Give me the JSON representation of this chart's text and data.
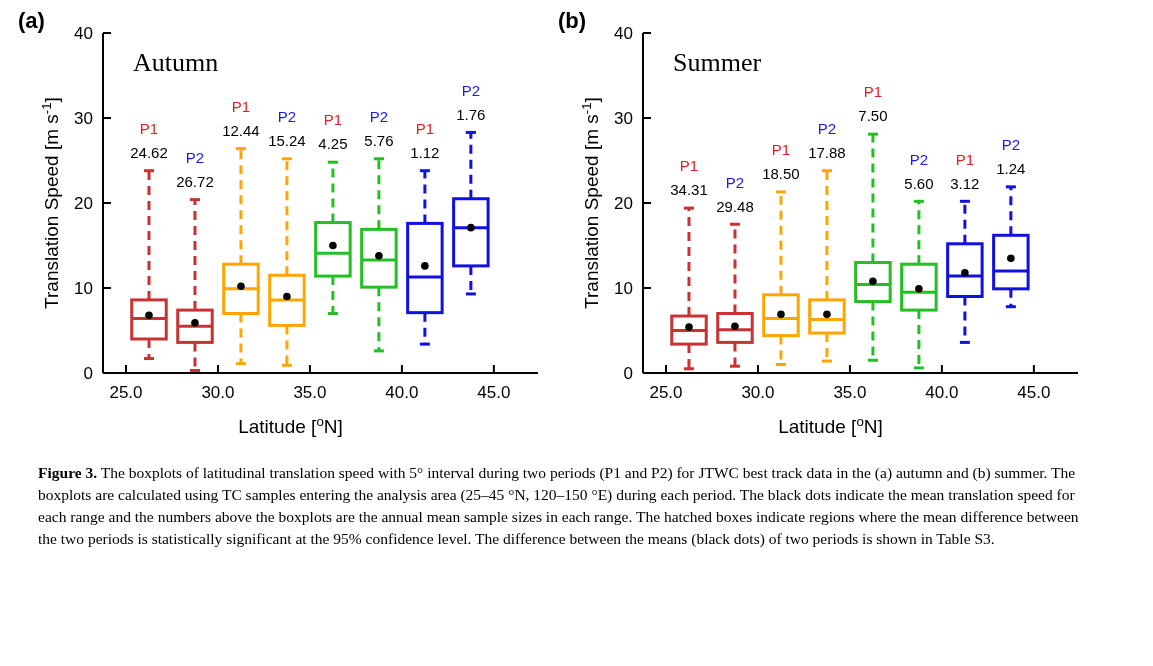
{
  "chart_data": [
    {
      "type": "box",
      "title": "(a)",
      "subtitle": "Autumn",
      "xlabel": "Latitude [$^{o}$N]",
      "ylabel": "Translation Speed [m s$^{-1}$]",
      "x": [
        26.25,
        28.75,
        31.25,
        33.75,
        36.25,
        38.75,
        41.25,
        43.75
      ],
      "colors": [
        "#c83232",
        "#c83232",
        "#ffa500",
        "#ffa500",
        "#22c022",
        "#22c022",
        "#1010e0",
        "#1010e0"
      ],
      "boxes": [
        {
          "low": 1.7,
          "q1": 4.0,
          "median": 6.4,
          "q3": 8.6,
          "high": 23.8,
          "mean": 6.8
        },
        {
          "low": 0.3,
          "q1": 3.6,
          "median": 5.5,
          "q3": 7.4,
          "high": 20.4,
          "mean": 5.9
        },
        {
          "low": 1.1,
          "q1": 7.0,
          "median": 9.9,
          "q3": 12.8,
          "high": 26.4,
          "mean": 10.2
        },
        {
          "low": 0.9,
          "q1": 5.6,
          "median": 8.6,
          "q3": 11.5,
          "high": 25.2,
          "mean": 9.0
        },
        {
          "low": 7.0,
          "q1": 11.4,
          "median": 14.1,
          "q3": 17.7,
          "high": 24.8,
          "mean": 15.0
        },
        {
          "low": 2.6,
          "q1": 10.1,
          "median": 13.3,
          "q3": 16.9,
          "high": 25.2,
          "mean": 13.8
        },
        {
          "low": 3.4,
          "q1": 7.1,
          "median": 11.3,
          "q3": 17.6,
          "high": 23.8,
          "mean": 12.6
        },
        {
          "low": 9.3,
          "q1": 12.6,
          "median": 17.1,
          "q3": 20.5,
          "high": 28.3,
          "mean": 17.1
        }
      ],
      "xlim": [
        23.75,
        47.4
      ],
      "xticks": [
        {
          "value": 25,
          "label": "25.0"
        },
        {
          "value": 30,
          "label": "30.0"
        },
        {
          "value": 35,
          "label": "35.0"
        },
        {
          "value": 40,
          "label": "40.0"
        },
        {
          "value": 45,
          "label": "45.0"
        }
      ],
      "ylim": [
        0,
        40
      ],
      "yticks": [
        0,
        10,
        20,
        30,
        40
      ],
      "grid": false,
      "marker": "circle",
      "line_style": "dashed",
      "annotations": [
        "P1",
        "24.62",
        "P2",
        "26.72",
        "P1",
        "12.44",
        "P2",
        "15.24",
        "P1",
        "4.25",
        "P2",
        "5.76",
        "P1",
        "1.12",
        "P2",
        "1.76",
        "Figure 3. The boxplots of latitudinal translation speed with 5° interval during two periods (P1 and P2) for JTWC best track data in the (a) autumn and (b) summer. The boxplots are calculated using TC samples entering the analysis area (25–45 °N, 120–150 °E) during each period. The black dots indicate the mean translation speed for each range and the numbers above the boxplots are the annual mean sample sizes in each range. The hatched boxes indicate regions where the mean difference between the two periods is statistically significant at the 95% confidence level. The difference between the means (black dots) of two periods is shown in Table S3."
      ]
    },
    {
      "type": "box",
      "title": "(b)",
      "subtitle": "Summer",
      "xlabel": "Latitude [$^{o}$N]",
      "ylabel": "Translation Speed [m s$^{-1}$]",
      "x": [
        26.25,
        28.75,
        31.25,
        33.75,
        36.25,
        38.75,
        41.25,
        43.75
      ],
      "colors": [
        "#c83232",
        "#c83232",
        "#ffa500",
        "#ffa500",
        "#22c022",
        "#22c022",
        "#1010e0",
        "#1010e0"
      ],
      "boxes": [
        {
          "low": 0.5,
          "q1": 3.4,
          "median": 5.0,
          "q3": 6.7,
          "high": 19.4,
          "mean": 5.4
        },
        {
          "low": 0.8,
          "q1": 3.6,
          "median": 5.1,
          "q3": 7.0,
          "high": 17.5,
          "mean": 5.5
        },
        {
          "low": 1.0,
          "q1": 4.4,
          "median": 6.4,
          "q3": 9.2,
          "high": 21.3,
          "mean": 6.9
        },
        {
          "low": 1.4,
          "q1": 4.7,
          "median": 6.3,
          "q3": 8.6,
          "high": 23.8,
          "mean": 6.9
        },
        {
          "low": 1.5,
          "q1": 8.4,
          "median": 10.4,
          "q3": 13.0,
          "high": 28.1,
          "mean": 10.8
        },
        {
          "low": 0.6,
          "q1": 7.4,
          "median": 9.5,
          "q3": 12.8,
          "high": 20.2,
          "mean": 9.9
        },
        {
          "low": 3.6,
          "q1": 9.0,
          "median": 11.4,
          "q3": 15.2,
          "high": 20.2,
          "mean": 11.8
        },
        {
          "low": 7.8,
          "q1": 9.9,
          "median": 12.0,
          "q3": 16.2,
          "high": 21.9,
          "mean": 13.5
        }
      ],
      "xlim": [
        23.75,
        47.4
      ],
      "xticks": [
        {
          "value": 25,
          "label": "25.0"
        },
        {
          "value": 30,
          "label": "30.0"
        },
        {
          "value": 35,
          "label": "35.0"
        },
        {
          "value": 40,
          "label": "40.0"
        },
        {
          "value": 45,
          "label": "45.0"
        }
      ],
      "ylim": [
        0,
        40
      ],
      "yticks": [
        0,
        10,
        20,
        30,
        40
      ],
      "grid": false,
      "marker": "circle",
      "line_style": "dashed",
      "annotations": [
        "P1",
        "34.31",
        "P2",
        "29.48",
        "P1",
        "18.50",
        "P2",
        "17.88",
        "P1",
        "7.50",
        "P2",
        "5.60",
        "P1",
        "3.12",
        "P2",
        "1.24"
      ]
    }
  ]
}
